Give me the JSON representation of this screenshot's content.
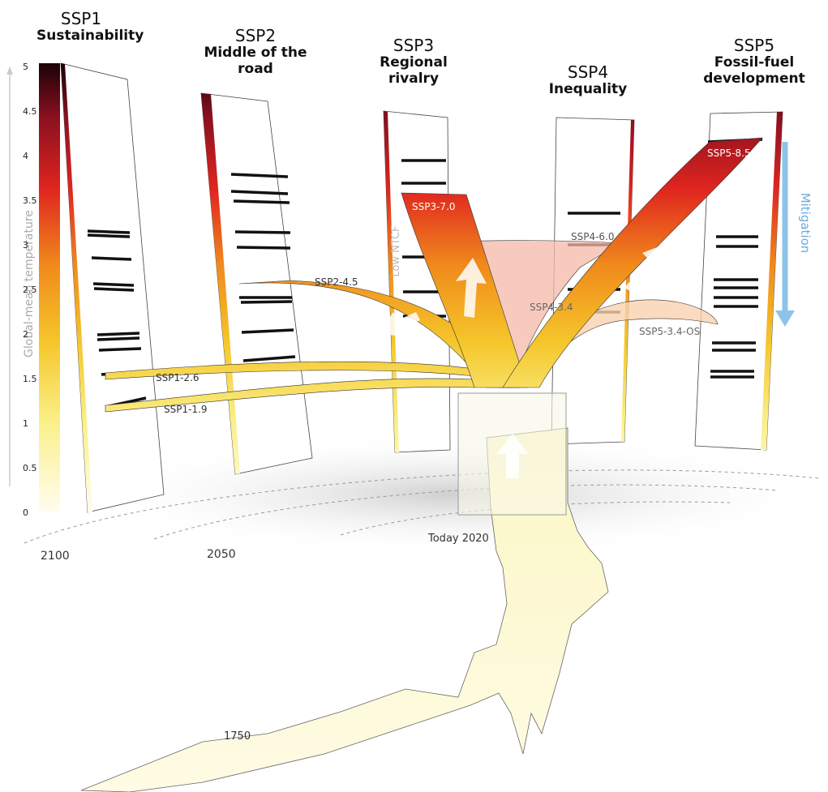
{
  "panels": [
    {
      "code": "SSP1",
      "name": "Sustainability"
    },
    {
      "code": "SSP2",
      "name": "Middle of the road"
    },
    {
      "code": "SSP3",
      "name": "Regional rivalry"
    },
    {
      "code": "SSP4",
      "name": "Inequality"
    },
    {
      "code": "SSP5",
      "name": "Fossil-fuel development"
    }
  ],
  "axis": {
    "title": "Global-mean temperature",
    "ticks": [
      0,
      0.5,
      1,
      1.5,
      2,
      2.5,
      3,
      3.5,
      4,
      4.5,
      5
    ]
  },
  "scenarios": [
    "SSP1-1.9",
    "SSP1-2.6",
    "SSP2-4.5",
    "SSP3-7.0",
    "SSP4-6.0",
    "SSP4-3.4",
    "SSP5-8.5",
    "SSP5-3.4-OS"
  ],
  "annotations": {
    "low_ntcf": "Low NTCF",
    "mitigation": "Mitigation"
  },
  "timeline": [
    "2100",
    "2050",
    "Today 2020",
    "1750"
  ]
}
